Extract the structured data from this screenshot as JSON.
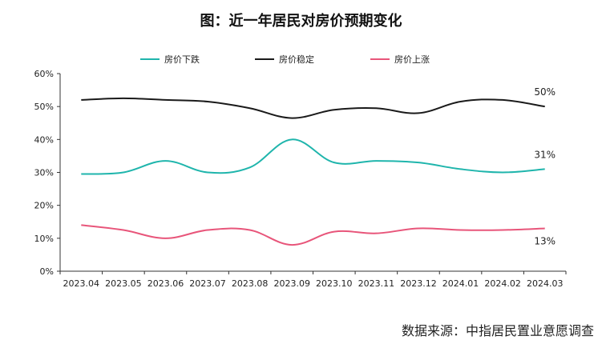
{
  "chart_data": {
    "type": "line",
    "title": "图：近一年居民对房价预期变化",
    "source": "数据来源：中指居民置业意愿调查",
    "categories": [
      "2023.04",
      "2023.05",
      "2023.06",
      "2023.07",
      "2023.08",
      "2023.09",
      "2023.10",
      "2023.11",
      "2023.12",
      "2024.01",
      "2024.02",
      "2024.03"
    ],
    "ylim": [
      0,
      60
    ],
    "yticks": [
      "0%",
      "10%",
      "20%",
      "30%",
      "40%",
      "50%",
      "60%"
    ],
    "legend_position": "top",
    "grid": false,
    "series": [
      {
        "name": "房价下跌",
        "color": "#1fb5ac",
        "values": [
          29.5,
          30,
          33.5,
          30,
          31.5,
          40,
          33,
          33.5,
          33,
          31,
          30,
          31
        ],
        "end_label": "31%"
      },
      {
        "name": "房价稳定",
        "color": "#1a1a1a",
        "values": [
          52,
          52.5,
          52,
          51.5,
          49.5,
          46.5,
          49,
          49.5,
          48,
          51.5,
          52,
          50
        ],
        "end_label": "50%"
      },
      {
        "name": "房价上涨",
        "color": "#e8557a",
        "values": [
          14,
          12.5,
          10,
          12.5,
          12.5,
          8,
          12,
          11.5,
          13,
          12.5,
          12.5,
          13
        ],
        "end_label": "13%"
      }
    ]
  }
}
